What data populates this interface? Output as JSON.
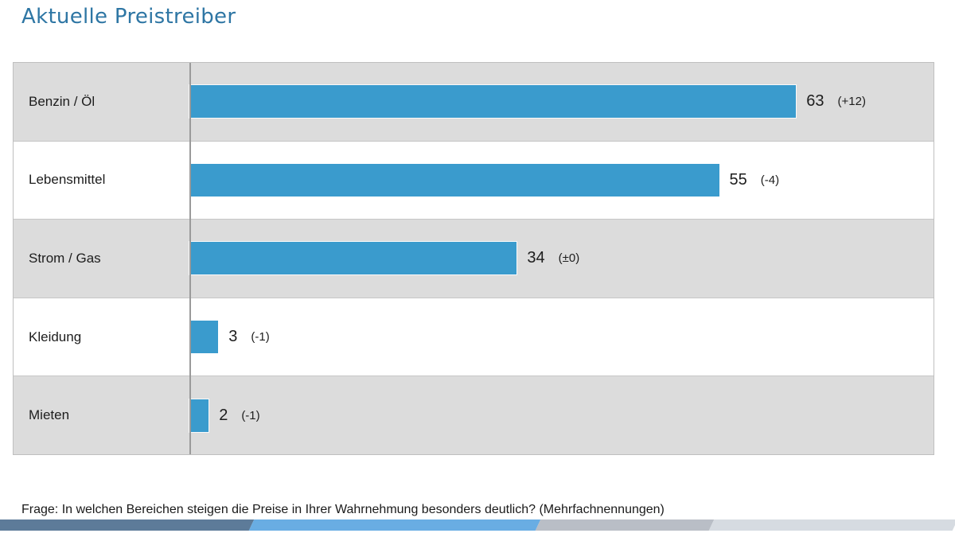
{
  "title": "Aktuelle Preistreiber",
  "footnote": "Frage: In welchen Bereichen steigen die Preise in Ihrer Wahrnehmung besonders deutlich? (Mehrfachnennungen)",
  "chart_data": {
    "type": "bar",
    "orientation": "horizontal",
    "title": "Aktuelle Preistreiber",
    "categories": [
      "Benzin / Öl",
      "Lebensmittel",
      "Strom / Gas",
      "Kleidung",
      "Mieten"
    ],
    "values": [
      63,
      55,
      34,
      3,
      2
    ],
    "change_labels": [
      "(+12)",
      "(-4)",
      "(±0)",
      "(-1)",
      "(-1)"
    ],
    "xlim": [
      0,
      77
    ],
    "grid": false,
    "legend": false
  },
  "colors": {
    "title": "#2e76a4",
    "text": "#1d1d1d",
    "bar": "#3a9bcd",
    "row_stripe": "#dcdcdc",
    "row_plain": "#ffffff",
    "table_border": "#bfbfbf",
    "axis_line": "#9a9a9a",
    "bottom_strip": [
      "#5d7b99",
      "#69ade3",
      "#b9bec6",
      "#d6dbe1"
    ]
  }
}
